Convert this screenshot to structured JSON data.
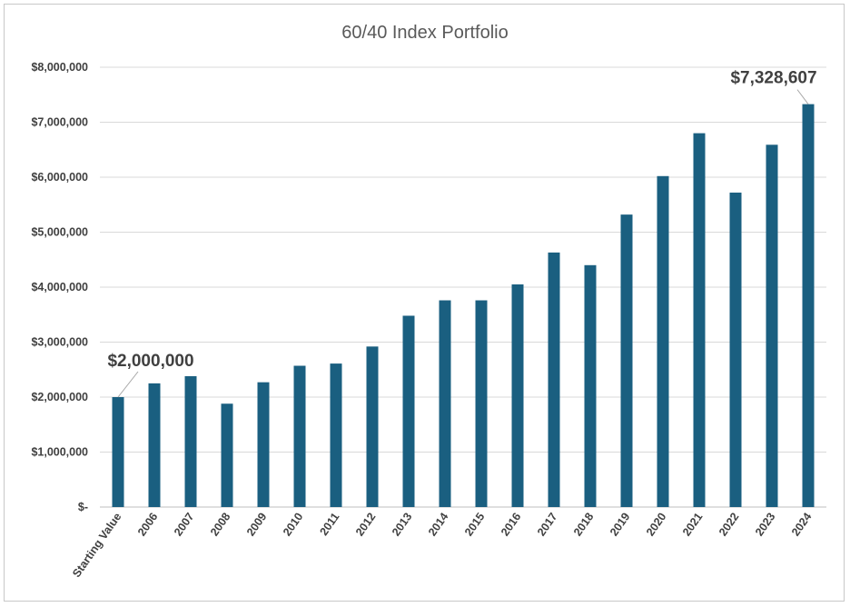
{
  "chart_data": {
    "type": "bar",
    "title": "60/40 Index Portfolio",
    "xlabel": "",
    "ylabel": "",
    "ylim": [
      0,
      8000000
    ],
    "grid": true,
    "legend": "none",
    "bar_color": "#1a5f80",
    "categories": [
      "Starting Value",
      "2006",
      "2007",
      "2008",
      "2009",
      "2010",
      "2011",
      "2012",
      "2013",
      "2014",
      "2015",
      "2016",
      "2017",
      "2018",
      "2019",
      "2020",
      "2021",
      "2022",
      "2023",
      "2024"
    ],
    "values": [
      2000000,
      2250000,
      2380000,
      1880000,
      2270000,
      2570000,
      2610000,
      2920000,
      3480000,
      3760000,
      3760000,
      4050000,
      4630000,
      4400000,
      5320000,
      6020000,
      6800000,
      5720000,
      6590000,
      7328607
    ],
    "y_tick_labels": [
      "$-",
      "$1,000,000",
      "$2,000,000",
      "$3,000,000",
      "$4,000,000",
      "$5,000,000",
      "$6,000,000",
      "$7,000,000",
      "$8,000,000"
    ],
    "annotations": [
      {
        "category": "Starting Value",
        "text": "$2,000,000"
      },
      {
        "category": "2024",
        "text": "$7,328,607"
      }
    ]
  }
}
